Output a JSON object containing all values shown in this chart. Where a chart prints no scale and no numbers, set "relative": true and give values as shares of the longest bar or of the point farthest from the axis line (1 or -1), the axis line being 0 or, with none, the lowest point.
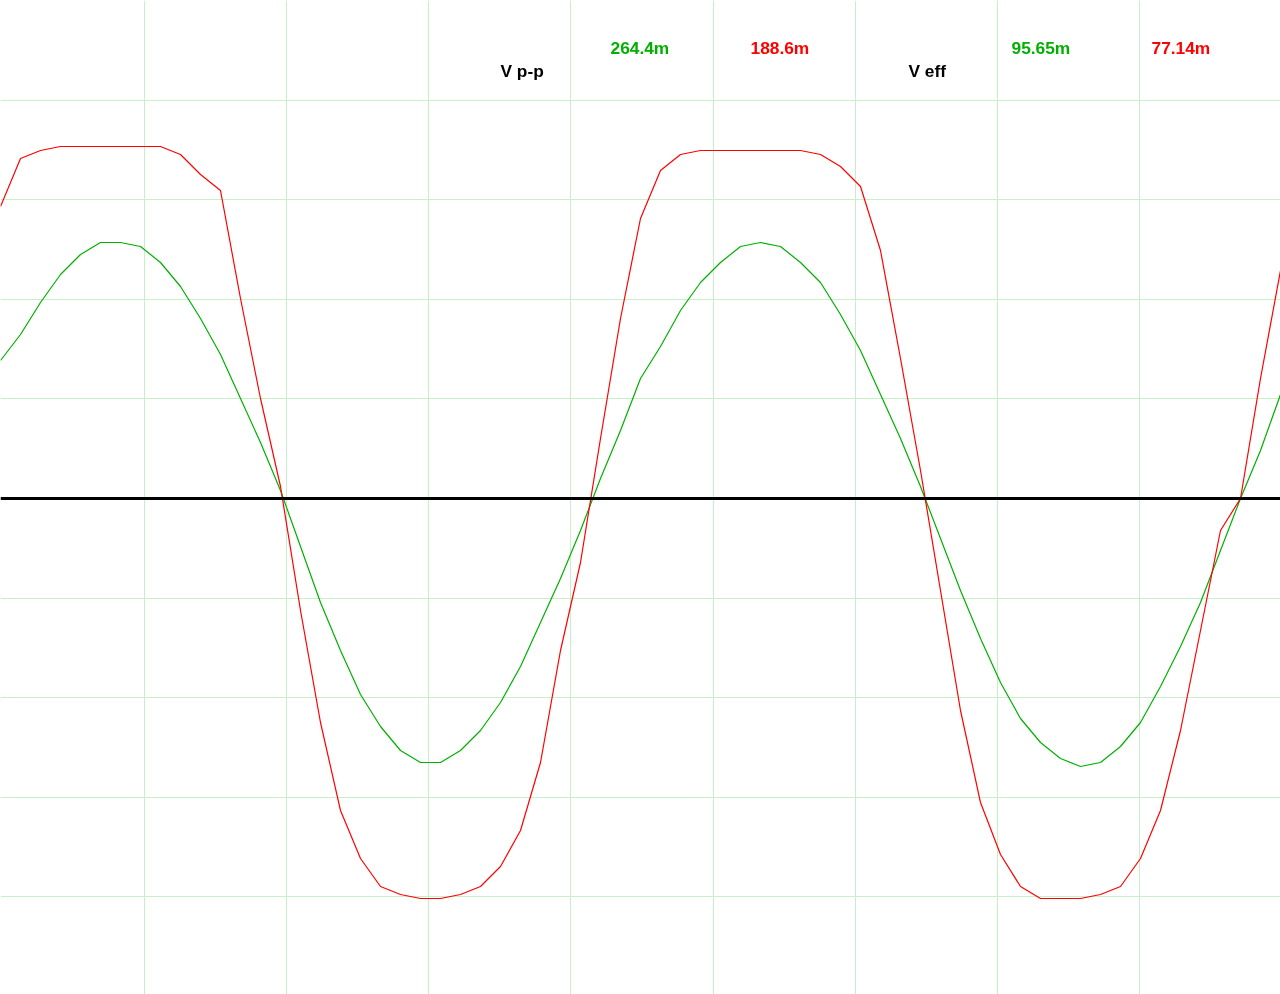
{
  "chart_data": {
    "type": "line",
    "relative": true,
    "grid": true,
    "marker": "none",
    "line_style": "solid",
    "annotations": [
      "V p-p",
      "264.4m",
      "188.6m",
      "V eff",
      "95.65m",
      "77.14m"
    ],
    "categories": [
      null,
      null,
      null,
      null,
      null,
      null,
      null,
      null,
      null,
      null,
      null,
      null,
      null,
      null,
      null,
      null,
      null,
      null,
      null,
      null,
      null,
      null,
      null,
      null,
      null,
      null,
      null,
      null,
      null,
      null,
      null,
      null,
      null,
      null,
      null,
      null,
      null,
      null,
      null,
      null,
      null,
      null,
      null,
      null,
      null,
      null,
      null,
      null,
      null,
      null,
      null,
      null,
      null,
      null,
      null,
      null,
      null,
      null,
      null,
      null,
      null,
      null,
      null,
      null,
      null
    ],
    "series": [
      {
        "color": "#00b000",
        "values": [
          0.345,
          0.41,
          0.49,
          0.56,
          0.61,
          0.64,
          0.64,
          0.63,
          0.59,
          0.53,
          0.45,
          0.36,
          0.25,
          0.14,
          0.02,
          -0.12,
          -0.26,
          -0.38,
          -0.49,
          -0.57,
          -0.63,
          -0.66,
          -0.66,
          -0.63,
          -0.58,
          -0.51,
          -0.42,
          -0.31,
          -0.2,
          -0.08,
          0.05,
          0.17,
          0.3,
          0.38,
          0.47,
          0.54,
          0.59,
          0.63,
          0.64,
          0.63,
          0.59,
          0.54,
          0.46,
          0.37,
          0.26,
          0.15,
          0.03,
          -0.1,
          -0.23,
          -0.35,
          -0.46,
          -0.55,
          -0.61,
          -0.65,
          -0.67,
          -0.66,
          -0.62,
          -0.56,
          -0.47,
          -0.37,
          -0.26,
          -0.13,
          0,
          0.12,
          0.26
        ]
      },
      {
        "color": "#ff0000",
        "values": [
          0.73,
          0.85,
          0.87,
          0.88,
          0.88,
          0.88,
          0.88,
          0.88,
          0.88,
          0.86,
          0.81,
          0.77,
          0.5,
          0.25,
          0.03,
          -0.28,
          -0.56,
          -0.78,
          -0.9,
          -0.97,
          -0.99,
          -1,
          -1,
          -0.99,
          -0.97,
          -0.92,
          -0.83,
          -0.66,
          -0.38,
          -0.16,
          0.15,
          0.45,
          0.7,
          0.82,
          0.86,
          0.87,
          0.87,
          0.87,
          0.87,
          0.87,
          0.87,
          0.86,
          0.83,
          0.78,
          0.62,
          0.35,
          0.07,
          -0.23,
          -0.53,
          -0.76,
          -0.89,
          -0.97,
          -1,
          -1,
          -1,
          -0.99,
          -0.97,
          -0.9,
          -0.78,
          -0.58,
          -0.33,
          -0.08,
          0,
          0.3,
          0.57
        ]
      }
    ]
  }
}
